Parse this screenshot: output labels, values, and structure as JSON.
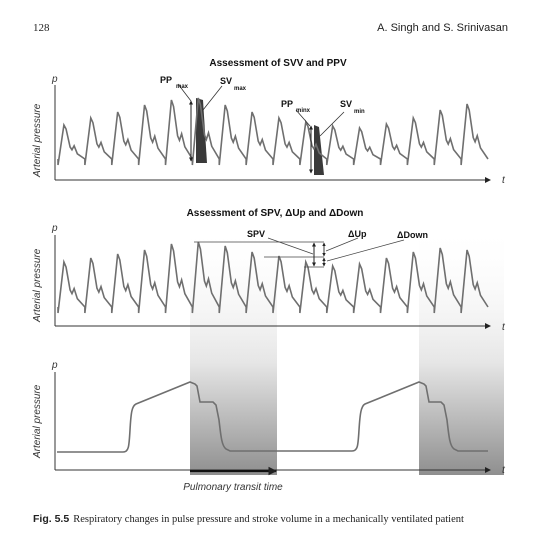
{
  "header": {
    "page_number": "128",
    "running_head": "A. Singh and S. Srinivasan"
  },
  "figure": {
    "panel1": {
      "title": "Assessment of SVV and PPV",
      "y_label": "Arterial pressure",
      "y_symbol": "p",
      "x_symbol": "t",
      "pp_max": "PP",
      "pp_max_sub": "max",
      "sv_max": "SV",
      "sv_max_sub": "max",
      "pp_min": "PP",
      "pp_min_sub": "minx",
      "sv_min": "SV",
      "sv_min_sub": "min"
    },
    "panel2": {
      "title": "Assessment of SPV, ΔUp and ΔDown",
      "y_label": "Arterial pressure",
      "y_symbol": "p",
      "x_symbol": "t",
      "spv": "SPV",
      "delta_up": "ΔUp",
      "delta_down": "ΔDown"
    },
    "panel3": {
      "y_label": "Arterial pressure",
      "y_symbol": "p",
      "x_symbol": "t",
      "transit_label": "Pulmonary transit time"
    }
  },
  "caption": {
    "label": "Fig. 5.5",
    "text": "Respiratory changes in pulse pressure and stroke volume in a mechanically ventilated patient"
  }
}
